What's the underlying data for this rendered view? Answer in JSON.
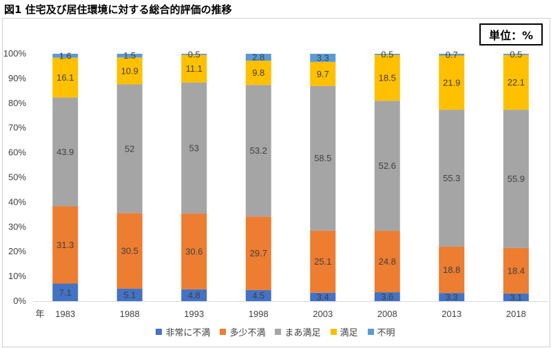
{
  "title": "図1 住宅及び居住環境に対する総合的評価の推移",
  "unit_label": "単位：%",
  "x_axis_unit": "年",
  "chart_data": {
    "type": "bar",
    "stacked": true,
    "percent_axis": true,
    "categories": [
      "1983",
      "1988",
      "1993",
      "1998",
      "2003",
      "2008",
      "2013",
      "2018"
    ],
    "y_ticks": [
      "0%",
      "10%",
      "20%",
      "30%",
      "40%",
      "50%",
      "60%",
      "70%",
      "80%",
      "90%",
      "100%"
    ],
    "ylim": [
      0,
      100
    ],
    "grid": false,
    "legend_position": "bottom",
    "series": [
      {
        "name": "非常に不満",
        "color": "#4472c4",
        "label_color": "#ffffff",
        "values": [
          7.1,
          5.1,
          4.8,
          4.5,
          3.4,
          3.6,
          3.3,
          3.1
        ]
      },
      {
        "name": "多少不満",
        "color": "#ed7d31",
        "label_color": "#404040",
        "values": [
          31.3,
          30.5,
          30.6,
          29.7,
          25.1,
          24.8,
          18.8,
          18.4
        ]
      },
      {
        "name": "まあ満足",
        "color": "#a5a5a5",
        "label_color": "#404040",
        "values": [
          43.9,
          52,
          53,
          53.2,
          58.5,
          52.6,
          55.3,
          55.9
        ]
      },
      {
        "name": "満足",
        "color": "#ffc000",
        "label_color": "#404040",
        "values": [
          16.1,
          10.9,
          11.1,
          9.8,
          9.7,
          18.5,
          21.9,
          22.1
        ]
      },
      {
        "name": "不明",
        "color": "#5b9bd5",
        "label_color": "#404040",
        "values": [
          1.6,
          1.5,
          0.5,
          2.8,
          3.3,
          0.5,
          0.7,
          0.5
        ]
      }
    ]
  }
}
